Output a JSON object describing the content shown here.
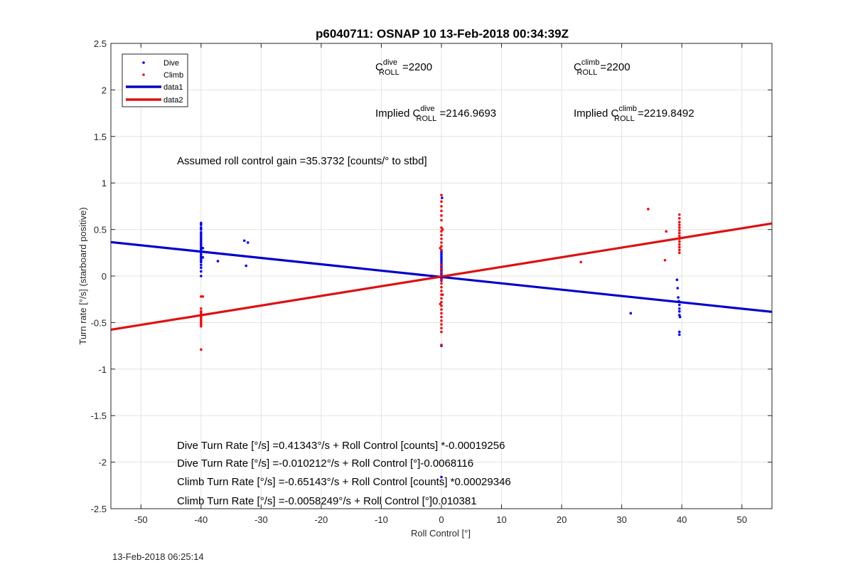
{
  "footer_timestamp": "13-Feb-2018 06:25:14",
  "colors": {
    "dive": "#0000ff",
    "climb": "#ff0000",
    "fit_dive": "#0000cc",
    "fit_climb": "#dd1111"
  },
  "chart_data": {
    "type": "scatter",
    "title": "p6040711: OSNAP 10 13-Feb-2018 00:34:39Z",
    "xlabel": "Roll Control [°]",
    "ylabel": "Turn rate [°/s] (starboard positive)",
    "xlim": [
      -55,
      55
    ],
    "ylim": [
      -2.5,
      2.5
    ],
    "xticks": [
      -50,
      -40,
      -30,
      -20,
      -10,
      0,
      10,
      20,
      30,
      40,
      50
    ],
    "yticks": [
      -2.5,
      -2,
      -1.5,
      -1,
      -0.5,
      0,
      0.5,
      1,
      1.5,
      2,
      2.5
    ],
    "grid": true,
    "legend_position": "top-left",
    "legend": [
      {
        "label": "Dive",
        "style": "dots",
        "color": "#0000ff"
      },
      {
        "label": "Climb",
        "style": "dots",
        "color": "#ff0000"
      },
      {
        "label": "data1",
        "style": "line",
        "color": "#0000cc"
      },
      {
        "label": "data2",
        "style": "line",
        "color": "#dd1111"
      }
    ],
    "series": [
      {
        "name": "Dive",
        "color": "#0000ff",
        "points": [
          [
            -40,
            0.57
          ],
          [
            -40,
            0.55
          ],
          [
            -40,
            0.52
          ],
          [
            -40,
            0.5
          ],
          [
            -40,
            0.47
          ],
          [
            -40,
            0.45
          ],
          [
            -40,
            0.43
          ],
          [
            -40,
            0.41
          ],
          [
            -40,
            0.39
          ],
          [
            -40,
            0.37
          ],
          [
            -40,
            0.35
          ],
          [
            -40,
            0.33
          ],
          [
            -40,
            0.31
          ],
          [
            -40,
            0.29
          ],
          [
            -40,
            0.27
          ],
          [
            -40,
            0.25
          ],
          [
            -40,
            0.23
          ],
          [
            -40,
            0.21
          ],
          [
            -40,
            0.19
          ],
          [
            -40,
            0.17
          ],
          [
            -40,
            0.15
          ],
          [
            -40,
            0.12
          ],
          [
            -40,
            0.09
          ],
          [
            -40,
            0.05
          ],
          [
            -40,
            0.0
          ],
          [
            -39.7,
            0.3
          ],
          [
            -39.7,
            0.2
          ],
          [
            -37.2,
            0.16
          ],
          [
            -32.8,
            0.38
          ],
          [
            -32.2,
            0.36
          ],
          [
            -32.5,
            0.11
          ],
          [
            0,
            0.27
          ],
          [
            0,
            0.25
          ],
          [
            0,
            0.23
          ],
          [
            0,
            0.21
          ],
          [
            0,
            0.19
          ],
          [
            0,
            0.17
          ],
          [
            0,
            0.15
          ],
          [
            0,
            0.13
          ],
          [
            0,
            0.11
          ],
          [
            0,
            0.09
          ],
          [
            0,
            0.07
          ],
          [
            0,
            0.05
          ],
          [
            0,
            0.03
          ],
          [
            0,
            0.01
          ],
          [
            0,
            -0.01
          ],
          [
            0,
            -0.03
          ],
          [
            0,
            -0.05
          ],
          [
            0.1,
            0.84
          ],
          [
            0,
            -0.75
          ],
          [
            0,
            -2.16
          ],
          [
            31.5,
            -0.4
          ],
          [
            39.2,
            -0.04
          ],
          [
            39.3,
            -0.13
          ],
          [
            39.4,
            -0.23
          ],
          [
            39.5,
            -0.27
          ],
          [
            39.6,
            -0.31
          ],
          [
            39.6,
            -0.35
          ],
          [
            39.6,
            -0.38
          ],
          [
            39.6,
            -0.42
          ],
          [
            39.7,
            -0.44
          ],
          [
            39.6,
            -0.6
          ],
          [
            39.6,
            -0.63
          ]
        ]
      },
      {
        "name": "Climb",
        "color": "#ff0000",
        "points": [
          [
            -40,
            -0.22
          ],
          [
            -40,
            -0.35
          ],
          [
            -40,
            -0.38
          ],
          [
            -40,
            -0.4
          ],
          [
            -40,
            -0.42
          ],
          [
            -40,
            -0.44
          ],
          [
            -40,
            -0.46
          ],
          [
            -40,
            -0.48
          ],
          [
            -40,
            -0.5
          ],
          [
            -40,
            -0.52
          ],
          [
            -40,
            -0.54
          ],
          [
            -40,
            -0.79
          ],
          [
            -39.7,
            -0.22
          ],
          [
            0,
            0.87
          ],
          [
            0,
            0.8
          ],
          [
            0,
            0.75
          ],
          [
            0,
            0.7
          ],
          [
            0,
            0.65
          ],
          [
            0,
            0.6
          ],
          [
            0,
            0.52
          ],
          [
            0,
            0.48
          ],
          [
            0,
            0.44
          ],
          [
            0,
            0.4
          ],
          [
            0,
            0.36
          ],
          [
            0,
            0.32
          ],
          [
            0,
            0.28
          ],
          [
            0,
            0.12
          ],
          [
            0,
            0.08
          ],
          [
            0,
            0.04
          ],
          [
            0,
            0.0
          ],
          [
            0,
            -0.04
          ],
          [
            0,
            -0.08
          ],
          [
            0,
            -0.12
          ],
          [
            0,
            -0.16
          ],
          [
            0,
            -0.2
          ],
          [
            0,
            -0.24
          ],
          [
            0,
            -0.28
          ],
          [
            0,
            -0.32
          ],
          [
            0,
            -0.36
          ],
          [
            0,
            -0.4
          ],
          [
            0,
            -0.44
          ],
          [
            0,
            -0.48
          ],
          [
            0,
            -0.52
          ],
          [
            0,
            -0.56
          ],
          [
            0,
            -0.6
          ],
          [
            0,
            -0.74
          ],
          [
            0.2,
            0.5
          ],
          [
            -0.2,
            -0.3
          ],
          [
            0.2,
            -0.2
          ],
          [
            -0.2,
            0.3
          ],
          [
            23.2,
            0.15
          ],
          [
            34.4,
            0.72
          ],
          [
            37.2,
            0.17
          ],
          [
            37.4,
            0.48
          ],
          [
            39.6,
            0.66
          ],
          [
            39.6,
            0.62
          ],
          [
            39.6,
            0.58
          ],
          [
            39.6,
            0.55
          ],
          [
            39.6,
            0.52
          ],
          [
            39.6,
            0.49
          ],
          [
            39.6,
            0.46
          ],
          [
            39.6,
            0.43
          ],
          [
            39.6,
            0.4
          ],
          [
            39.6,
            0.37
          ],
          [
            39.6,
            0.34
          ],
          [
            39.6,
            0.31
          ],
          [
            39.6,
            0.28
          ],
          [
            39.6,
            0.25
          ]
        ]
      }
    ],
    "fit_lines": [
      {
        "name": "data1",
        "color": "#0000cc",
        "intercept": -0.010212,
        "slope": -0.0068116
      },
      {
        "name": "data2",
        "color": "#dd1111",
        "intercept": -0.0058249,
        "slope": 0.010381
      }
    ],
    "annotations": {
      "c_dive": {
        "prefix": "C",
        "sup": "dive",
        "sub": "ROLL",
        "value": " =2200"
      },
      "c_climb": {
        "prefix": "C",
        "sup": "climb",
        "sub": "ROLL",
        "value": " =2200"
      },
      "implied_dive": {
        "prefix": "Implied C",
        "sup": "dive",
        "sub": "ROLL",
        "value": " =2146.9693"
      },
      "implied_climb": {
        "prefix": "Implied C",
        "sup": "climb",
        "sub": "ROLL",
        "value": " =2219.8492"
      },
      "assumed_gain": "Assumed roll control gain =35.3732 [counts/° to stbd]",
      "dive_rate_counts": "Dive Turn Rate [°/s] =0.41343°/s + Roll Control [counts] *-0.00019256",
      "dive_rate_deg": "Dive Turn Rate [°/s] =-0.010212°/s + Roll Control [°]-0.0068116",
      "climb_rate_counts": "Climb Turn Rate [°/s] =-0.65143°/s + Roll Control [counts] *0.00029346",
      "climb_rate_deg": "Climb Turn Rate [°/s] =-0.0058249°/s + Roll Control [°]0.010381"
    }
  }
}
